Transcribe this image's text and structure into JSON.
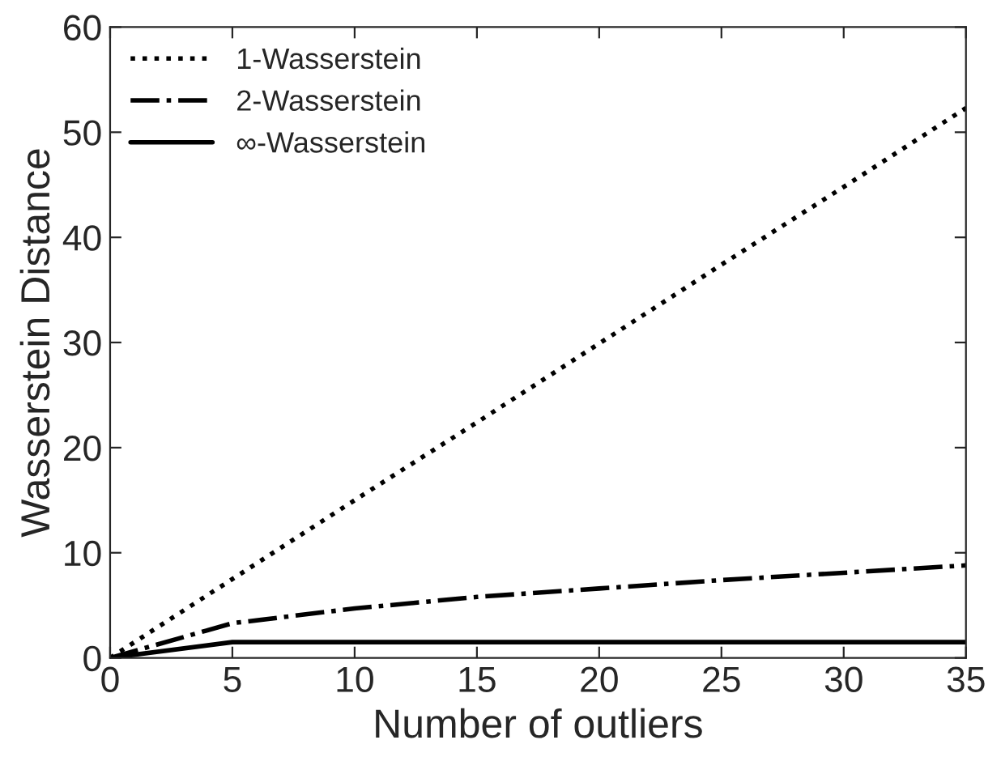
{
  "chart_data": {
    "type": "line",
    "xlabel": "Number of outliers",
    "ylabel": "Wasserstein Distance",
    "x": [
      0,
      5,
      10,
      15,
      20,
      25,
      30,
      35
    ],
    "series": [
      {
        "name": "1-Wasserstein",
        "color": "#000000",
        "line_style": "dotted",
        "values": [
          0,
          7.5,
          15,
          22.4,
          29.9,
          37.4,
          44.8,
          52.3
        ]
      },
      {
        "name": "2-Wasserstein",
        "color": "#000000",
        "line_style": "dashdot",
        "values": [
          0,
          3.3,
          4.7,
          5.8,
          6.6,
          7.4,
          8.1,
          8.8
        ]
      },
      {
        "name": "∞-Wasserstein",
        "color": "#000000",
        "line_style": "solid",
        "values": [
          0,
          1.5,
          1.5,
          1.5,
          1.5,
          1.5,
          1.5,
          1.5
        ]
      }
    ],
    "xlim": [
      0,
      35
    ],
    "xticks": [
      0,
      5,
      10,
      15,
      20,
      25,
      30,
      35
    ],
    "ylim": [
      0,
      60
    ],
    "yticks": [
      0,
      10,
      20,
      30,
      40,
      50,
      60
    ],
    "grid": false,
    "legend": "top left",
    "marker": "none"
  }
}
